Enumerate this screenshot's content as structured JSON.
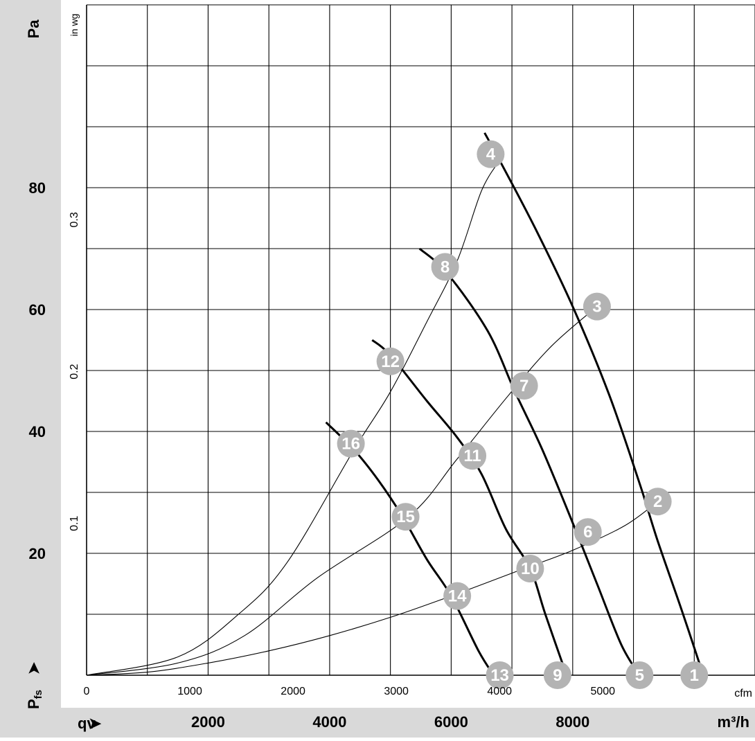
{
  "chart_data": {
    "type": "line",
    "axes": {
      "y_primary_label": "Pa",
      "y_primary_ticks": [
        20,
        40,
        60,
        80
      ],
      "y_primary_range": [
        0,
        110
      ],
      "y_secondary_label": "in wg",
      "y_secondary_ticks": [
        "0.1",
        "0.2",
        "0.3"
      ],
      "x_primary_label": "m³/h",
      "x_primary_ticks": [
        2000,
        4000,
        6000,
        8000
      ],
      "x_primary_range": [
        0,
        11000
      ],
      "x_secondary_label": "cfm",
      "x_secondary_ticks": [
        0,
        1000,
        2000,
        3000,
        4000,
        5000
      ],
      "corner_axis_label": "qv",
      "pfs_label_main": "P",
      "pfs_label_sub": "fs",
      "grid": true
    },
    "curves": [
      {
        "name": "",
        "style": "bold",
        "points": [
          [
            6550,
            89
          ],
          [
            6850,
            83.5
          ],
          [
            7400,
            73
          ],
          [
            8000,
            60.5
          ],
          [
            8600,
            46
          ],
          [
            9100,
            31.5
          ],
          [
            9400,
            22
          ],
          [
            9800,
            10.5
          ],
          [
            10150,
            0
          ]
        ]
      },
      {
        "name": "",
        "style": "bold",
        "points": [
          [
            5480,
            70
          ],
          [
            5930,
            66
          ],
          [
            6600,
            56.5
          ],
          [
            7050,
            46.5
          ],
          [
            7500,
            37
          ],
          [
            8000,
            25
          ],
          [
            8400,
            15
          ],
          [
            8800,
            5
          ],
          [
            9100,
            0
          ]
        ]
      },
      {
        "name": "",
        "style": "bold",
        "points": [
          [
            4700,
            55
          ],
          [
            5000,
            52.5
          ],
          [
            5600,
            45
          ],
          [
            6100,
            39
          ],
          [
            6500,
            33
          ],
          [
            6900,
            24
          ],
          [
            7300,
            17.5
          ],
          [
            7550,
            10
          ],
          [
            7900,
            0
          ]
        ]
      },
      {
        "name": "",
        "style": "bold",
        "points": [
          [
            3940,
            41.5
          ],
          [
            4400,
            37
          ],
          [
            4800,
            32
          ],
          [
            5200,
            26
          ],
          [
            5600,
            19
          ],
          [
            6000,
            13
          ],
          [
            6450,
            4
          ],
          [
            6700,
            0
          ]
        ]
      },
      {
        "name": "",
        "style": "thin",
        "points": [
          [
            0,
            0
          ],
          [
            1500,
            3
          ],
          [
            2500,
            10
          ],
          [
            3300,
            18.5
          ],
          [
            4400,
            37
          ],
          [
            5000,
            46.5
          ],
          [
            5600,
            58
          ],
          [
            6100,
            68
          ],
          [
            6500,
            79.5
          ],
          [
            6800,
            84.5
          ]
        ]
      },
      {
        "name": "",
        "style": "thin",
        "points": [
          [
            0,
            0
          ],
          [
            1500,
            2
          ],
          [
            2600,
            6.5
          ],
          [
            3800,
            16
          ],
          [
            5300,
            26
          ],
          [
            6100,
            35.5
          ],
          [
            6950,
            46
          ],
          [
            7650,
            54
          ],
          [
            8400,
            60.5
          ]
        ]
      },
      {
        "name": "",
        "style": "thin",
        "points": [
          [
            0,
            0
          ],
          [
            1000,
            0.5
          ],
          [
            2000,
            2
          ],
          [
            3000,
            4
          ],
          [
            4000,
            6.5
          ],
          [
            5000,
            9.5
          ],
          [
            6000,
            13
          ],
          [
            7200,
            17.5
          ],
          [
            8000,
            20.5
          ],
          [
            8850,
            24.5
          ],
          [
            9400,
            28.5
          ]
        ]
      }
    ],
    "markers": [
      {
        "label": "1",
        "x": 10000,
        "y": 0
      },
      {
        "label": "2",
        "x": 9400,
        "y": 28.5
      },
      {
        "label": "3",
        "x": 8400,
        "y": 60.5
      },
      {
        "label": "4",
        "x": 6650,
        "y": 85.5
      },
      {
        "label": "5",
        "x": 9100,
        "y": 0
      },
      {
        "label": "6",
        "x": 8250,
        "y": 23.5
      },
      {
        "label": "7",
        "x": 7200,
        "y": 47.5
      },
      {
        "label": "8",
        "x": 5900,
        "y": 67
      },
      {
        "label": "9",
        "x": 7750,
        "y": 0
      },
      {
        "label": "10",
        "x": 7300,
        "y": 17.5
      },
      {
        "label": "11",
        "x": 6350,
        "y": 36
      },
      {
        "label": "12",
        "x": 5000,
        "y": 51.5
      },
      {
        "label": "13",
        "x": 6800,
        "y": 0
      },
      {
        "label": "14",
        "x": 6100,
        "y": 13
      },
      {
        "label": "15",
        "x": 5250,
        "y": 26
      },
      {
        "label": "16",
        "x": 4350,
        "y": 38
      }
    ],
    "colors": {
      "band": "#d9d9d9",
      "grid": "#000000",
      "curve": "#000000",
      "marker_fill": "#b3b3b3",
      "marker_text": "#ffffff"
    }
  }
}
